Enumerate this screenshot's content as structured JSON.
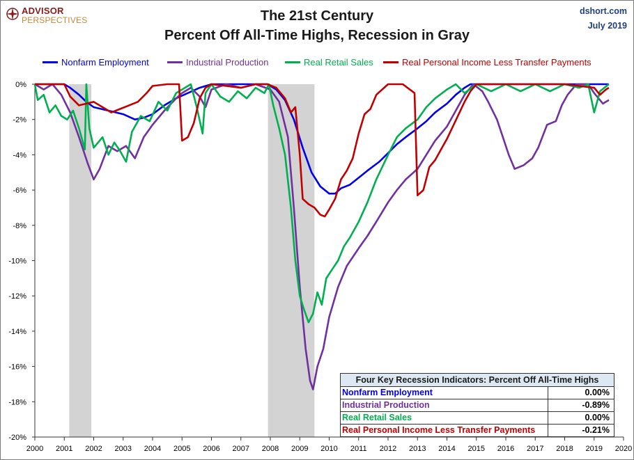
{
  "logo": {
    "line1": "ADVISOR",
    "line2": "PERSPECTIVES"
  },
  "header": {
    "title_line1": "The 21st Century",
    "title_line2": "Percent Off All-Time Highs, Recession in Gray",
    "source": "dshort.com",
    "date": "July 2019"
  },
  "colors": {
    "employment": "#0000ee",
    "industrial": "#7030a0",
    "retail": "#00b050",
    "income": "#c00000",
    "recession": "#d3d3d3"
  },
  "infobox": {
    "title": "Four Key Recession Indicators: Percent Off All-Time Highs",
    "rows": [
      {
        "label": "Nonfarm Employment",
        "value": "0.00%",
        "color": "#0000ee"
      },
      {
        "label": "Industrial Production",
        "value": "-0.89%",
        "color": "#7030a0"
      },
      {
        "label": "Real Retail Sales",
        "value": "0.00%",
        "color": "#00b050"
      },
      {
        "label": "Real Personal Income Less Transfer Payments",
        "value": "-0.21%",
        "color": "#c00000"
      }
    ]
  },
  "chart_data": {
    "type": "line",
    "title": "The 21st Century Percent Off All-Time Highs, Recession in Gray",
    "xlim": [
      2000,
      2020
    ],
    "ylim": [
      -20,
      0
    ],
    "x_ticks": [
      "2000",
      "2001",
      "2002",
      "2003",
      "2004",
      "2005",
      "2006",
      "2007",
      "2008",
      "2009",
      "2010",
      "2011",
      "2012",
      "2013",
      "2014",
      "2015",
      "2016",
      "2017",
      "2018",
      "2019",
      "2020"
    ],
    "y_ticks": [
      "0%",
      "-2%",
      "-4%",
      "-6%",
      "-8%",
      "-10%",
      "-12%",
      "-14%",
      "-16%",
      "-18%",
      "-20%"
    ],
    "y_tick_values": [
      0,
      -2,
      -4,
      -6,
      -8,
      -10,
      -12,
      -14,
      -16,
      -18,
      -20
    ],
    "recessions": [
      [
        2001.17,
        2001.92
      ],
      [
        2007.92,
        2009.5
      ]
    ],
    "legend_position": "top",
    "grid": false,
    "series": [
      {
        "name": "Nonfarm Employment",
        "color": "#0000ee",
        "points": [
          [
            2000,
            0
          ],
          [
            2001,
            0
          ],
          [
            2001.2,
            -0.2
          ],
          [
            2001.5,
            -0.6
          ],
          [
            2001.75,
            -1.0
          ],
          [
            2002,
            -1.3
          ],
          [
            2002.5,
            -1.5
          ],
          [
            2003,
            -1.7
          ],
          [
            2003.4,
            -2.0
          ],
          [
            2003.7,
            -1.9
          ],
          [
            2004,
            -1.7
          ],
          [
            2004.4,
            -1.2
          ],
          [
            2004.8,
            -0.8
          ],
          [
            2005.2,
            -0.5
          ],
          [
            2005.6,
            -0.2
          ],
          [
            2006,
            0
          ],
          [
            2007.9,
            0
          ],
          [
            2008.2,
            -0.3
          ],
          [
            2008.5,
            -0.9
          ],
          [
            2008.8,
            -2.0
          ],
          [
            2009.1,
            -3.6
          ],
          [
            2009.4,
            -5.0
          ],
          [
            2009.7,
            -5.8
          ],
          [
            2010,
            -6.2
          ],
          [
            2010.2,
            -6.2
          ],
          [
            2010.4,
            -5.9
          ],
          [
            2010.7,
            -5.7
          ],
          [
            2011,
            -5.3
          ],
          [
            2011.3,
            -4.9
          ],
          [
            2011.7,
            -4.4
          ],
          [
            2012,
            -3.9
          ],
          [
            2012.3,
            -3.4
          ],
          [
            2012.6,
            -3.0
          ],
          [
            2013,
            -2.5
          ],
          [
            2013.3,
            -2.1
          ],
          [
            2013.6,
            -1.6
          ],
          [
            2014,
            -1.1
          ],
          [
            2014.3,
            -0.6
          ],
          [
            2014.6,
            -0.2
          ],
          [
            2014.8,
            0
          ],
          [
            2019.5,
            0
          ]
        ]
      },
      {
        "name": "Industrial Production",
        "color": "#7030a0",
        "points": [
          [
            2000,
            0
          ],
          [
            2000.3,
            -0.3
          ],
          [
            2000.6,
            0
          ],
          [
            2000.9,
            -0.6
          ],
          [
            2001.2,
            -1.6
          ],
          [
            2001.5,
            -3.0
          ],
          [
            2001.8,
            -4.5
          ],
          [
            2002,
            -5.4
          ],
          [
            2002.2,
            -4.8
          ],
          [
            2002.5,
            -3.5
          ],
          [
            2002.8,
            -3.8
          ],
          [
            2003.1,
            -3.5
          ],
          [
            2003.4,
            -4.2
          ],
          [
            2003.7,
            -3.0
          ],
          [
            2004,
            -2.3
          ],
          [
            2004.4,
            -1.5
          ],
          [
            2004.8,
            -0.8
          ],
          [
            2005,
            -0.5
          ],
          [
            2005.3,
            -0.2
          ],
          [
            2005.6,
            -0.7
          ],
          [
            2005.8,
            -1.3
          ],
          [
            2006,
            -0.3
          ],
          [
            2006.5,
            0
          ],
          [
            2007,
            -0.2
          ],
          [
            2007.5,
            0
          ],
          [
            2008,
            -0.3
          ],
          [
            2008.3,
            -1.0
          ],
          [
            2008.6,
            -3.0
          ],
          [
            2008.8,
            -7.0
          ],
          [
            2009,
            -11.5
          ],
          [
            2009.2,
            -15.0
          ],
          [
            2009.35,
            -16.8
          ],
          [
            2009.45,
            -17.3
          ],
          [
            2009.6,
            -16.0
          ],
          [
            2009.8,
            -15.0
          ],
          [
            2010,
            -13.2
          ],
          [
            2010.3,
            -11.5
          ],
          [
            2010.6,
            -10.3
          ],
          [
            2011,
            -9.3
          ],
          [
            2011.3,
            -8.6
          ],
          [
            2011.6,
            -7.8
          ],
          [
            2012,
            -6.7
          ],
          [
            2012.3,
            -6.0
          ],
          [
            2012.6,
            -5.4
          ],
          [
            2013,
            -4.8
          ],
          [
            2013.3,
            -4.0
          ],
          [
            2013.6,
            -3.2
          ],
          [
            2014,
            -2.4
          ],
          [
            2014.3,
            -1.5
          ],
          [
            2014.6,
            -0.6
          ],
          [
            2014.9,
            0
          ],
          [
            2015.2,
            -0.4
          ],
          [
            2015.4,
            -1.0
          ],
          [
            2015.7,
            -2.0
          ],
          [
            2015.9,
            -3.0
          ],
          [
            2016.1,
            -4.0
          ],
          [
            2016.3,
            -4.8
          ],
          [
            2016.6,
            -4.6
          ],
          [
            2016.9,
            -4.2
          ],
          [
            2017.1,
            -3.6
          ],
          [
            2017.4,
            -2.3
          ],
          [
            2017.7,
            -2.1
          ],
          [
            2017.9,
            -1.2
          ],
          [
            2018.1,
            -0.6
          ],
          [
            2018.4,
            0
          ],
          [
            2018.8,
            0
          ],
          [
            2019,
            -0.5
          ],
          [
            2019.3,
            -1.1
          ],
          [
            2019.5,
            -0.9
          ]
        ]
      },
      {
        "name": "Real Retail Sales",
        "color": "#00b050",
        "points": [
          [
            2000,
            0
          ],
          [
            2000.1,
            -0.9
          ],
          [
            2000.3,
            -0.6
          ],
          [
            2000.5,
            -1.6
          ],
          [
            2000.7,
            -1.2
          ],
          [
            2000.9,
            -1.8
          ],
          [
            2001.1,
            -2.0
          ],
          [
            2001.3,
            -1.5
          ],
          [
            2001.5,
            -2.5
          ],
          [
            2001.7,
            -3.7
          ],
          [
            2001.75,
            0
          ],
          [
            2001.85,
            -2.5
          ],
          [
            2002,
            -3.6
          ],
          [
            2002.3,
            -3.0
          ],
          [
            2002.5,
            -4.0
          ],
          [
            2002.7,
            -3.3
          ],
          [
            2002.9,
            -3.8
          ],
          [
            2003.1,
            -4.4
          ],
          [
            2003.3,
            -2.7
          ],
          [
            2003.6,
            -1.8
          ],
          [
            2003.9,
            -2.1
          ],
          [
            2004.2,
            -1.0
          ],
          [
            2004.5,
            -1.5
          ],
          [
            2004.8,
            -0.5
          ],
          [
            2005,
            -0.3
          ],
          [
            2005.3,
            0
          ],
          [
            2005.5,
            -1.3
          ],
          [
            2005.7,
            -2.8
          ],
          [
            2005.8,
            -0.5
          ],
          [
            2006,
            0
          ],
          [
            2006.3,
            -0.7
          ],
          [
            2006.6,
            -1.0
          ],
          [
            2006.9,
            -0.4
          ],
          [
            2007.2,
            -0.8
          ],
          [
            2007.5,
            -0.2
          ],
          [
            2007.8,
            -0.5
          ],
          [
            2007.95,
            0
          ],
          [
            2008.1,
            -1.2
          ],
          [
            2008.3,
            -2.5
          ],
          [
            2008.5,
            -4.0
          ],
          [
            2008.7,
            -7.0
          ],
          [
            2008.85,
            -10.0
          ],
          [
            2009,
            -12.0
          ],
          [
            2009.15,
            -12.8
          ],
          [
            2009.3,
            -13.5
          ],
          [
            2009.45,
            -13.0
          ],
          [
            2009.6,
            -11.8
          ],
          [
            2009.75,
            -12.5
          ],
          [
            2009.9,
            -11.0
          ],
          [
            2010.1,
            -10.5
          ],
          [
            2010.3,
            -10.0
          ],
          [
            2010.5,
            -9.2
          ],
          [
            2010.7,
            -8.7
          ],
          [
            2011,
            -7.8
          ],
          [
            2011.3,
            -6.7
          ],
          [
            2011.6,
            -5.4
          ],
          [
            2012,
            -4.0
          ],
          [
            2012.3,
            -3.0
          ],
          [
            2012.6,
            -2.5
          ],
          [
            2013,
            -2.0
          ],
          [
            2013.3,
            -1.3
          ],
          [
            2013.6,
            -0.8
          ],
          [
            2014,
            -0.3
          ],
          [
            2014.3,
            0
          ],
          [
            2014.6,
            -0.5
          ],
          [
            2015,
            0
          ],
          [
            2015.5,
            -0.4
          ],
          [
            2016,
            0
          ],
          [
            2016.5,
            -0.4
          ],
          [
            2017,
            0
          ],
          [
            2017.5,
            -0.4
          ],
          [
            2018,
            0
          ],
          [
            2018.5,
            -0.2
          ],
          [
            2018.8,
            0
          ],
          [
            2019,
            -1.6
          ],
          [
            2019.2,
            -0.4
          ],
          [
            2019.5,
            0
          ]
        ]
      },
      {
        "name": "Real Personal Income Less Transfer Payments",
        "color": "#c00000",
        "points": [
          [
            2000,
            0
          ],
          [
            2001,
            0
          ],
          [
            2001.2,
            -0.7
          ],
          [
            2001.5,
            -1.2
          ],
          [
            2001.75,
            -1.1
          ],
          [
            2002,
            -1.0
          ],
          [
            2002.3,
            -1.3
          ],
          [
            2002.6,
            -1.6
          ],
          [
            2002.9,
            -1.4
          ],
          [
            2003.2,
            -1.2
          ],
          [
            2003.5,
            -1.0
          ],
          [
            2003.8,
            -0.5
          ],
          [
            2004,
            -0.1
          ],
          [
            2004.5,
            0
          ],
          [
            2004.9,
            0
          ],
          [
            2005,
            -3.2
          ],
          [
            2005.2,
            -3.0
          ],
          [
            2005.4,
            -2.2
          ],
          [
            2005.6,
            -0.8
          ],
          [
            2005.8,
            -0.2
          ],
          [
            2006,
            0
          ],
          [
            2006.5,
            -0.1
          ],
          [
            2007,
            -0.2
          ],
          [
            2007.5,
            0
          ],
          [
            2007.9,
            0
          ],
          [
            2008.2,
            -0.2
          ],
          [
            2008.5,
            -0.8
          ],
          [
            2008.7,
            -1.6
          ],
          [
            2008.85,
            -1.3
          ],
          [
            2009,
            -4.0
          ],
          [
            2009.1,
            -6.5
          ],
          [
            2009.3,
            -6.8
          ],
          [
            2009.5,
            -7.0
          ],
          [
            2009.7,
            -7.4
          ],
          [
            2009.85,
            -7.5
          ],
          [
            2010,
            -7.1
          ],
          [
            2010.2,
            -6.5
          ],
          [
            2010.4,
            -5.4
          ],
          [
            2010.6,
            -4.9
          ],
          [
            2010.8,
            -4.2
          ],
          [
            2011,
            -2.8
          ],
          [
            2011.2,
            -1.7
          ],
          [
            2011.4,
            -1.4
          ],
          [
            2011.6,
            -0.6
          ],
          [
            2012,
            0
          ],
          [
            2012.5,
            0
          ],
          [
            2012.9,
            -0.5
          ],
          [
            2013,
            -6.3
          ],
          [
            2013.2,
            -6.0
          ],
          [
            2013.4,
            -4.7
          ],
          [
            2013.6,
            -4.3
          ],
          [
            2013.8,
            -3.7
          ],
          [
            2014,
            -3.1
          ],
          [
            2014.2,
            -2.4
          ],
          [
            2014.4,
            -1.7
          ],
          [
            2014.6,
            -1.0
          ],
          [
            2014.8,
            -0.4
          ],
          [
            2015,
            0
          ],
          [
            2016,
            0
          ],
          [
            2017,
            0
          ],
          [
            2018,
            0
          ],
          [
            2019,
            -0.2
          ],
          [
            2019.2,
            -0.6
          ],
          [
            2019.4,
            -0.3
          ],
          [
            2019.5,
            -0.2
          ]
        ]
      }
    ]
  }
}
